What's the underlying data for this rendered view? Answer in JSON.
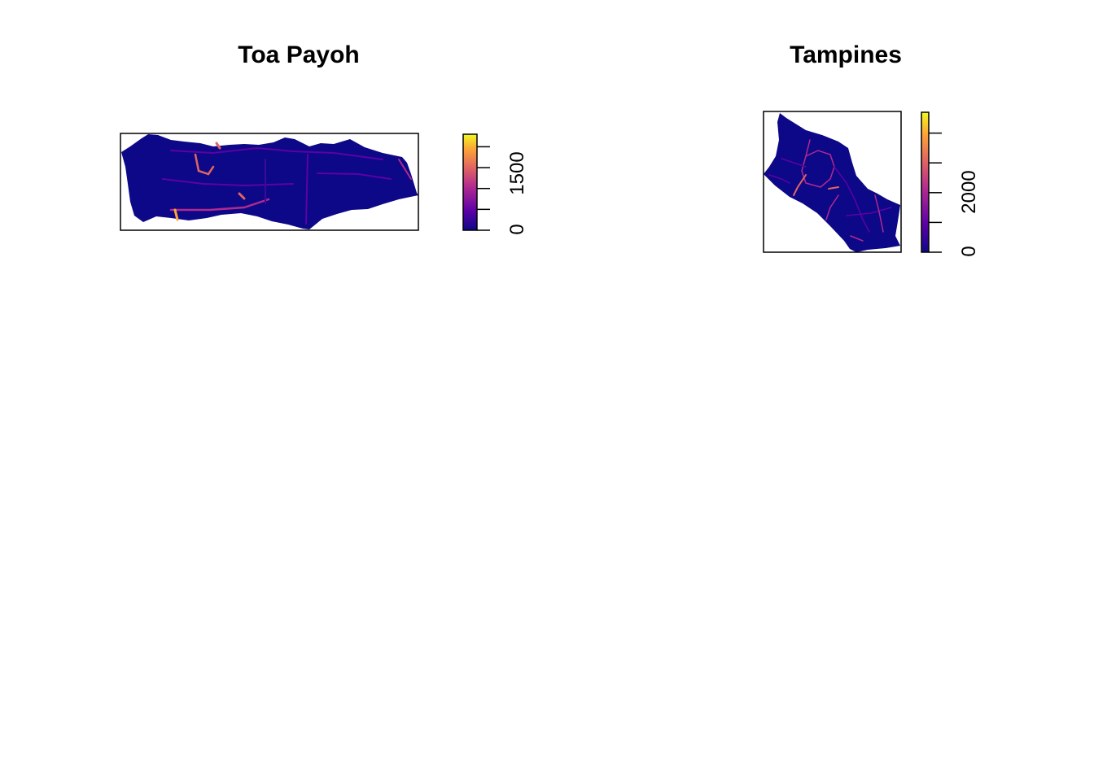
{
  "chart_data": [
    {
      "type": "heatmap",
      "title": "Toa Payoh",
      "legend": {
        "placement": "right",
        "ticks": [
          0,
          500,
          1000,
          1500,
          2000
        ],
        "tick_labels": [
          "0",
          "1500"
        ],
        "range": [
          0,
          2300
        ],
        "palette": [
          "#0d0887",
          "#5c01a6",
          "#b12a90",
          "#e16462",
          "#fca636",
          "#f0f921"
        ]
      },
      "axes": "none",
      "box": true
    },
    {
      "type": "heatmap",
      "title": "Tampines",
      "legend": {
        "placement": "right",
        "ticks": [
          0,
          1000,
          2000,
          3000,
          4000
        ],
        "tick_labels": [
          "0",
          "2000"
        ],
        "range": [
          0,
          4700
        ],
        "palette": [
          "#0d0887",
          "#5c01a6",
          "#b12a90",
          "#e16462",
          "#fca636",
          "#f0f921"
        ]
      },
      "axes": "none",
      "box": true
    }
  ]
}
